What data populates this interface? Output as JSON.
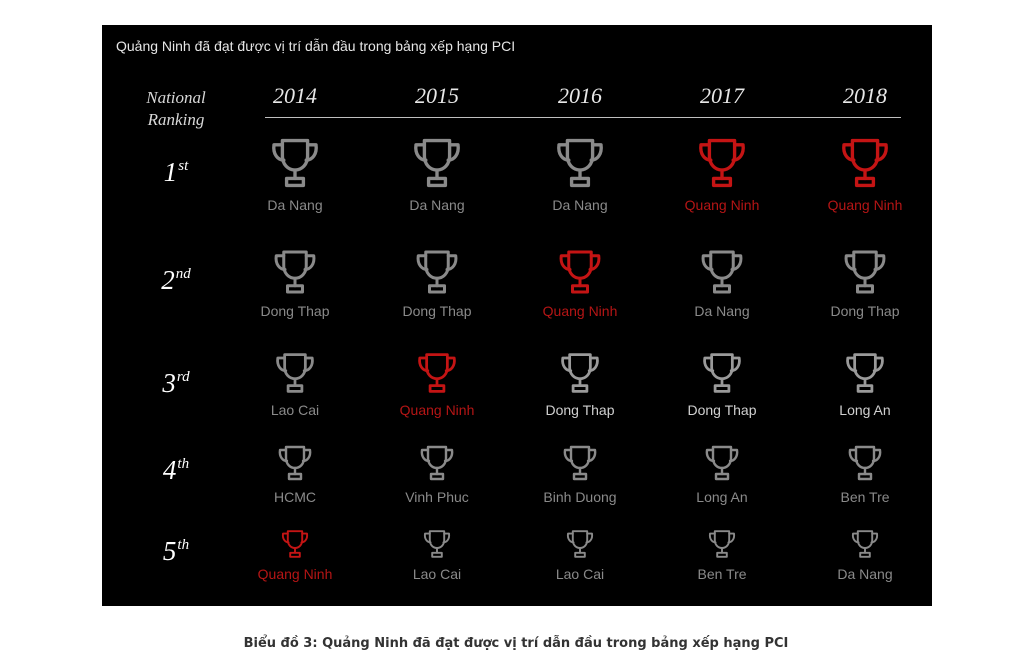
{
  "panel_title": "Quảng Ninh đã đạt được vị trí dẫn đầu trong bảng xếp hạng PCI",
  "national_ranking_label": {
    "line1": "National",
    "line2": "Ranking"
  },
  "years": [
    "2014",
    "2015",
    "2016",
    "2017",
    "2018"
  ],
  "ranks": [
    {
      "num": "1",
      "suffix": "st"
    },
    {
      "num": "2",
      "suffix": "nd"
    },
    {
      "num": "3",
      "suffix": "rd"
    },
    {
      "num": "4",
      "suffix": "th"
    },
    {
      "num": "5",
      "suffix": "th"
    }
  ],
  "grid": [
    [
      "Da Nang",
      "Da Nang",
      "Da Nang",
      "Quang Ninh",
      "Quang Ninh"
    ],
    [
      "Dong Thap",
      "Dong Thap",
      "Quang Ninh",
      "Da Nang",
      "Dong Thap"
    ],
    [
      "Lao Cai",
      "Quang Ninh",
      "Dong Thap",
      "Dong Thap",
      "Long An"
    ],
    [
      "HCMC",
      "Vinh Phuc",
      "Binh Duong",
      "Long An",
      "Ben Tre"
    ],
    [
      "Quang Ninh",
      "Lao Cai",
      "Lao Cai",
      "Ben Tre",
      "Da Nang"
    ]
  ],
  "highlight": "Quang Ninh",
  "colors": {
    "background": "#000000",
    "highlight": "#c41414",
    "muted": "#8a8a8a",
    "icon": "trophy-icon"
  },
  "caption": "Biểu đồ 3: Quảng Ninh đã đạt được vị trí dẫn đầu trong bảng xếp hạng PCI"
}
